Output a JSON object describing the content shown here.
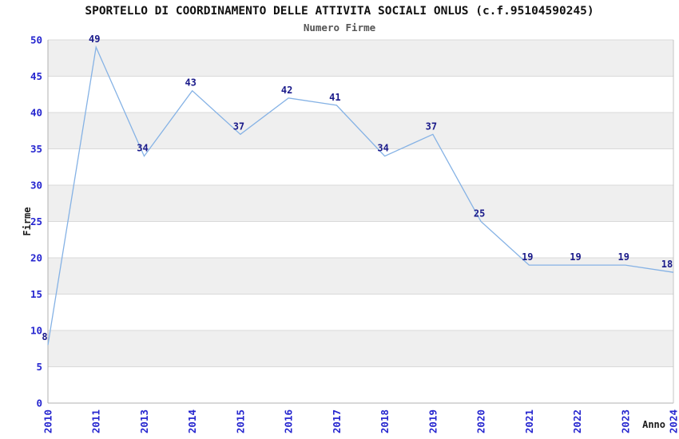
{
  "chart": {
    "title": "SPORTELLO DI COORDINAMENTO DELLE ATTIVITA SOCIALI ONLUS (c.f.95104590245)",
    "subtitle": "Numero Firme"
  },
  "chart_data": {
    "type": "line",
    "title": "SPORTELLO DI COORDINAMENTO DELLE ATTIVITA SOCIALI ONLUS (c.f.95104590245)",
    "subtitle": "Numero Firme",
    "categories": [
      "2010",
      "2011",
      "2013",
      "2014",
      "2015",
      "2016",
      "2017",
      "2018",
      "2019",
      "2020",
      "2021",
      "2022",
      "2023",
      "2024"
    ],
    "values": [
      8,
      49,
      34,
      43,
      37,
      42,
      41,
      34,
      37,
      25,
      19,
      19,
      19,
      18
    ],
    "series": [
      {
        "name": "Numero Firme",
        "values": [
          8,
          49,
          34,
          43,
          37,
          42,
          41,
          34,
          37,
          25,
          19,
          19,
          19,
          18
        ]
      }
    ],
    "xlabel": "Anno",
    "ylabel": "Firme",
    "ylim": [
      0,
      50
    ],
    "ytick_step": 5,
    "yticks": [
      0,
      5,
      10,
      15,
      20,
      25,
      30,
      35,
      40,
      45,
      50
    ],
    "grid": true,
    "point_labels": true,
    "legend": "none",
    "colors": {
      "line": "#85b2e5",
      "tick_labels": "#2525cf",
      "point_labels": "#1a1a8a",
      "band": "#efefef",
      "grid": "#d9d9d9",
      "axis": "#b0b0b0",
      "title": "#111111",
      "subtitle": "#555555",
      "axis_titles": "#1a1a1a"
    }
  }
}
